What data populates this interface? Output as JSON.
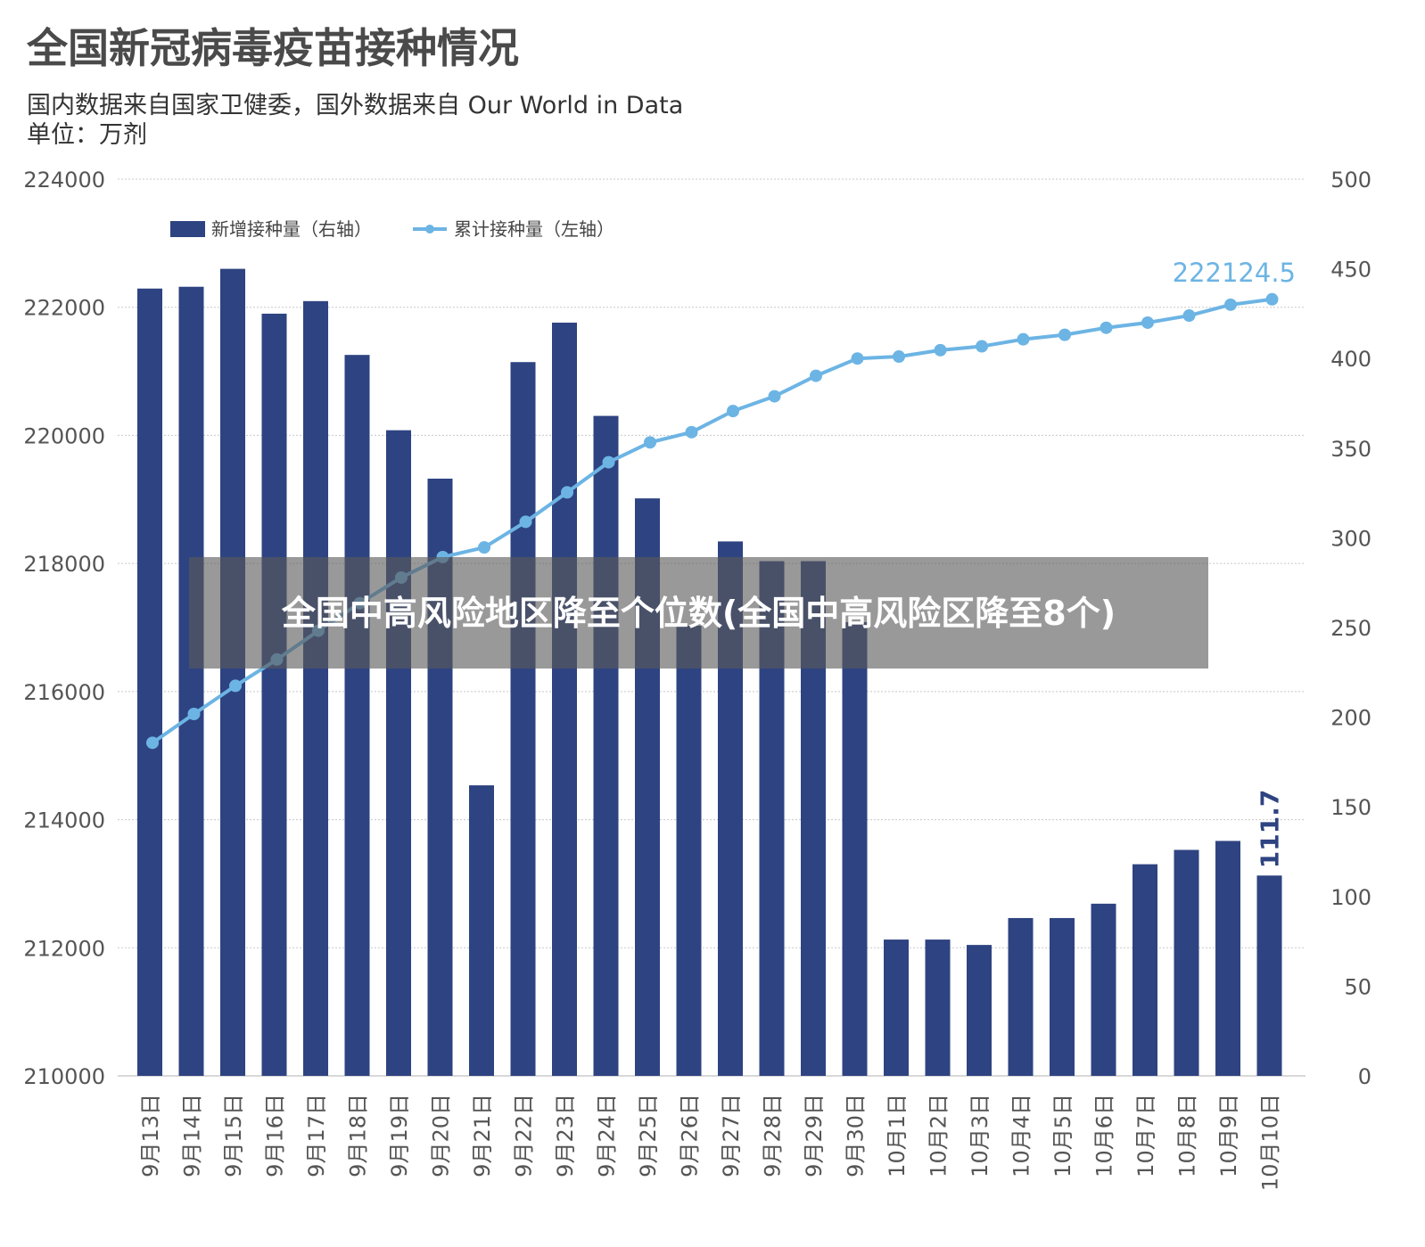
{
  "chart_data": {
    "type": "bar+line",
    "title": "全国新冠病毒疫苗接种情况",
    "subtitle_lines": [
      "国内数据来自国家卫健委，国外数据来自 Our World in Data",
      "单位：万剂"
    ],
    "categories": [
      "9月13日",
      "9月14日",
      "9月15日",
      "9月16日",
      "9月17日",
      "9月18日",
      "9月19日",
      "9月20日",
      "9月21日",
      "9月22日",
      "9月23日",
      "9月24日",
      "9月25日",
      "9月26日",
      "9月27日",
      "9月28日",
      "9月29日",
      "9月30日",
      "10月1日",
      "10月2日",
      "10月3日",
      "10月4日",
      "10月5日",
      "10月6日",
      "10月7日",
      "10月8日",
      "10月9日",
      "10月10日"
    ],
    "y_left": {
      "range": [
        210000,
        224000
      ],
      "ticks": [
        "210000",
        "212000",
        "214000",
        "216000",
        "218000",
        "220000",
        "222000",
        "224000"
      ]
    },
    "y_right": {
      "range": [
        0,
        500
      ],
      "ticks": [
        "0",
        "50",
        "100",
        "150",
        "200",
        "250",
        "300",
        "350",
        "400",
        "450",
        "500"
      ]
    },
    "grid": true,
    "legend_position": "top-left",
    "series": [
      {
        "name": "新增接种量（右轴）",
        "type": "bar",
        "axis": "right",
        "color": "#2e4381",
        "values": [
          439,
          440,
          450,
          425,
          432,
          402,
          360,
          333,
          162,
          398,
          420,
          368,
          322,
          251,
          298,
          287,
          287,
          253,
          76,
          76,
          73,
          88,
          88,
          96,
          118,
          126,
          131,
          111.7
        ]
      },
      {
        "name": "累计接种量（左轴）",
        "type": "line",
        "axis": "left",
        "color": "#6cb4e4",
        "values": [
          215200,
          215650,
          216090,
          216500,
          216950,
          217380,
          217780,
          218100,
          218250,
          218650,
          219110,
          219580,
          219890,
          220050,
          220380,
          220610,
          220930,
          221200,
          221230,
          221330,
          221390,
          221500,
          221570,
          221680,
          221760,
          221870,
          222040,
          222124.5
        ]
      }
    ],
    "annotations": {
      "line_last": "222124.5",
      "bar_last": "111.7"
    }
  },
  "overlay": {
    "text": "全国中高风险地区降至个位数(全国中高风险区降至8个)"
  },
  "colors": {
    "bar": "#2e4381",
    "line": "#6cb4e4",
    "overlay_bg": "#5a5a5a"
  }
}
